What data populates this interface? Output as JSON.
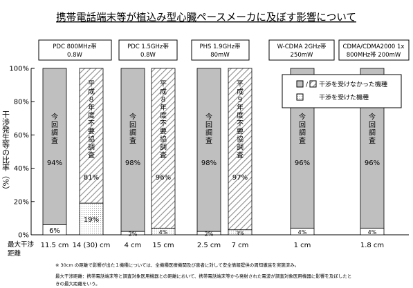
{
  "chart_data": {
    "type": "bar",
    "title": "携帯電話端末等が植込み型心臓ペースメーカに及ぼす影響について",
    "ylabel": "干渉発生等の比率（%）",
    "xlabel": "最大干渉距離",
    "ylim": [
      0,
      100
    ],
    "y_ticks": [
      "0%",
      "20%",
      "40%",
      "60%",
      "80%",
      "100%"
    ],
    "legend": {
      "position": "top-right",
      "entries": [
        {
          "label": "干渉を受けなかった機種",
          "key": "no_interference"
        },
        {
          "label": "干渉を受けた機種",
          "key": "interference"
        }
      ]
    },
    "groups": [
      {
        "header": [
          "PDC 800MHz帯",
          "0.8W"
        ]
      },
      {
        "header": [
          "PDC 1.5GHz帯",
          "0.8W"
        ]
      },
      {
        "header": [
          "PHS 1.9GHz帯",
          "80mW"
        ]
      },
      {
        "header": [
          "W-CDMA 2GHz帯",
          "250mW"
        ]
      },
      {
        "header": [
          "CDMA/CDMA2000 1x",
          "800MHz帯 200mW"
        ]
      }
    ],
    "bars": [
      {
        "group": 0,
        "survey": "今回調査",
        "distance": "11.5 cm",
        "no_interference": 94,
        "interference": 6,
        "no_interference_label": "94%",
        "interference_label": "6%",
        "hatched": false
      },
      {
        "group": 0,
        "survey": "平成８年度不要協調査",
        "distance": "14 (30) cm",
        "no_interference": 81,
        "interference": 19,
        "no_interference_label": "81%",
        "interference_label": "19%",
        "hatched": true
      },
      {
        "group": 1,
        "survey": "今回調査",
        "distance": "4 cm",
        "no_interference": 98,
        "interference": 2,
        "no_interference_label": "98%",
        "interference_label": "2%",
        "hatched": false
      },
      {
        "group": 1,
        "survey": "平成８年度不要協調査",
        "distance": "15 cm",
        "no_interference": 96,
        "interference": 4,
        "no_interference_label": "96%",
        "interference_label": "4%",
        "hatched": true
      },
      {
        "group": 2,
        "survey": "今回調査",
        "distance": "2.5 cm",
        "no_interference": 98,
        "interference": 2,
        "no_interference_label": "98%",
        "interference_label": "2%",
        "hatched": false
      },
      {
        "group": 2,
        "survey": "平成９年度不要協調査",
        "distance": "7 cm",
        "no_interference": 97,
        "interference": 3,
        "no_interference_label": "97%",
        "interference_label": "3%",
        "hatched": true
      },
      {
        "group": 3,
        "survey": "今回調査",
        "distance": "1 cm",
        "no_interference": 96,
        "interference": 4,
        "no_interference_label": "96%",
        "interference_label": "4%",
        "hatched": false
      },
      {
        "group": 4,
        "survey": "今回調査",
        "distance": "1.8 cm",
        "no_interference": 96,
        "interference": 4,
        "no_interference_label": "96%",
        "interference_label": "4%",
        "hatched": false
      }
    ],
    "notes": [
      "※ 30cm の距離で影響が出た１機種については、全機種医療機関及び患者に対して安全情報提供の周知徹底を実施済み。",
      "最大干渉距離：携帯電話端末等と調査対象医用機器との距離において、携帯電話端末等から発射された電波が調査対象医用機器に影響を及ぼしたときの最大距離をいう。"
    ],
    "colors": {
      "no_interference": "#bfbfbf",
      "hatch_background": "#ffffff",
      "hatch_line": "#8c8c8c",
      "interference": "#ffffff",
      "interference_dots": "#9a9a9a",
      "grid": "#d9d9d9",
      "frame": "#000000"
    }
  }
}
